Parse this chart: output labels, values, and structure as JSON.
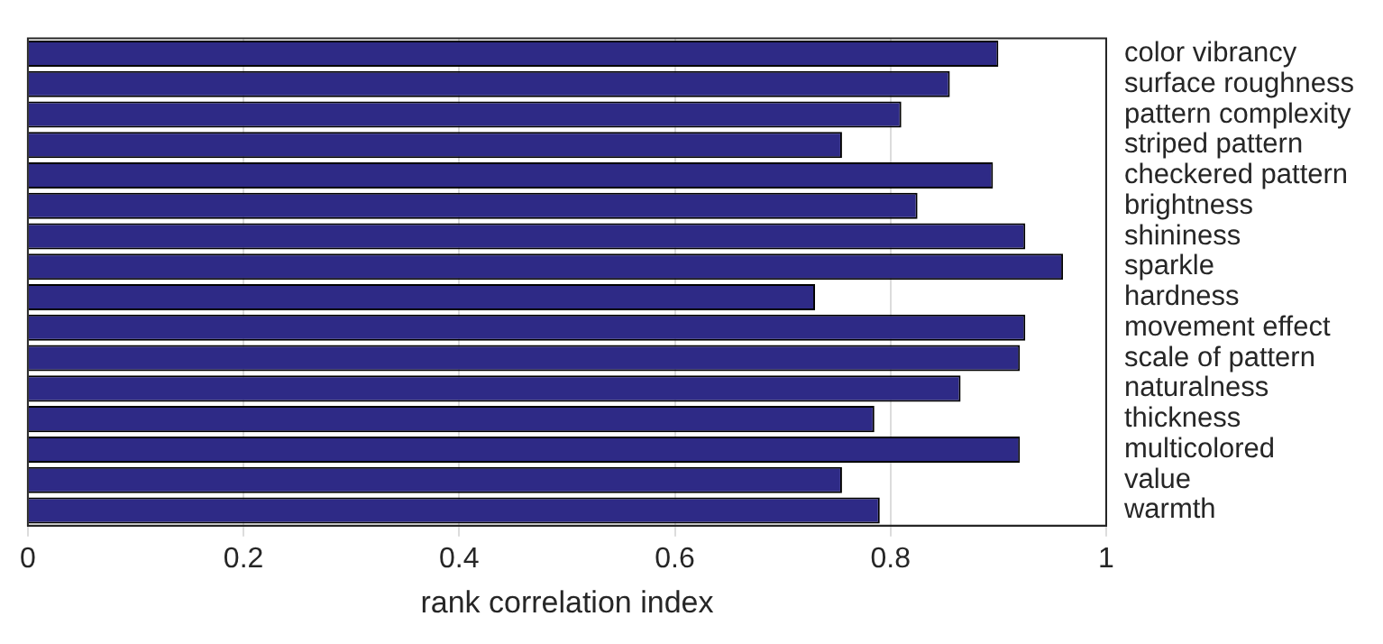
{
  "chart_data": {
    "type": "bar",
    "orientation": "horizontal",
    "xlabel": "rank correlation index",
    "categories": [
      "color vibrancy",
      "surface roughness",
      "pattern complexity",
      "striped pattern",
      "checkered pattern",
      "brightness",
      "shininess",
      "sparkle",
      "hardness",
      "movement effect",
      "scale of pattern",
      "naturalness",
      "thickness",
      "multicolored",
      "value",
      "warmth"
    ],
    "values": [
      0.9,
      0.855,
      0.81,
      0.755,
      0.895,
      0.825,
      0.925,
      0.96,
      0.73,
      0.925,
      0.92,
      0.865,
      0.785,
      0.92,
      0.755,
      0.79
    ],
    "color": "#2e2a86",
    "xlim": [
      0,
      1
    ],
    "xticks": [
      0,
      0.2,
      0.4,
      0.6,
      0.8,
      1
    ],
    "grid": "x",
    "legend": false
  }
}
